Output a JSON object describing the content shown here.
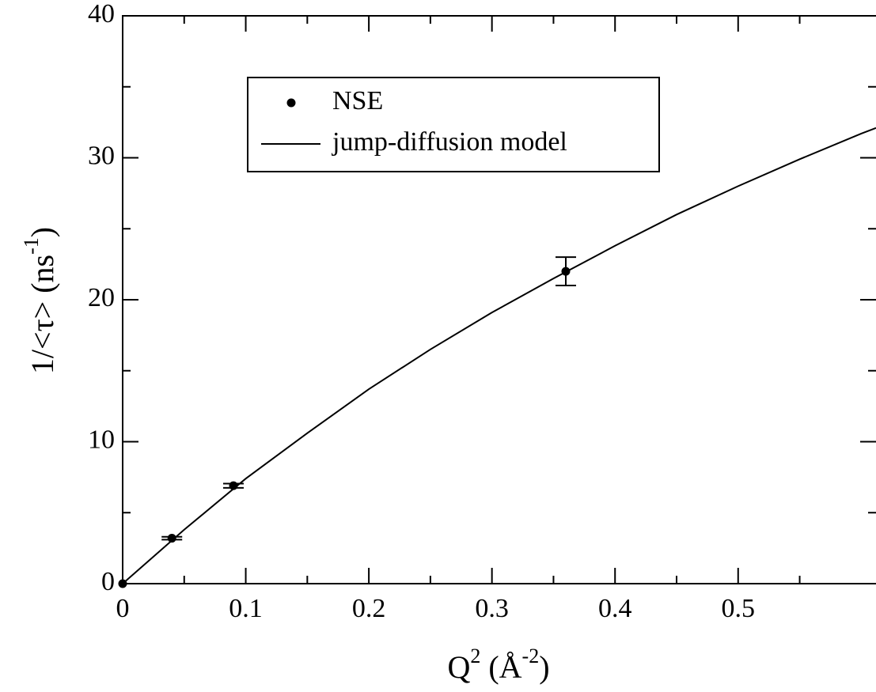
{
  "chart_data": {
    "type": "scatter",
    "x_label": {
      "text": "Q",
      "sup": "2",
      "mid": " (Å",
      "sup2": "-2",
      "tail": ")"
    },
    "y_label": {
      "text": "1/<τ> (ns",
      "sup": "-1",
      "tail": ")"
    },
    "xlim": [
      0,
      0.612
    ],
    "ylim": [
      0,
      40
    ],
    "xticks": [
      0,
      0.1,
      0.2,
      0.3,
      0.4,
      0.5
    ],
    "yticks": [
      0,
      10,
      20,
      30,
      40
    ],
    "xticks_minor": [
      0.05,
      0.15,
      0.25,
      0.35,
      0.45,
      0.55
    ],
    "yticks_minor": [
      5,
      15,
      25,
      35
    ],
    "legend": "upper left",
    "series": [
      {
        "name": "NSE",
        "type": "scatter",
        "color": "#000000",
        "x": [
          0,
          0.04,
          0.09,
          0.36
        ],
        "values": [
          0,
          3.2,
          6.9,
          22
        ],
        "errors": [
          0,
          0.1,
          0.15,
          1.0
        ]
      },
      {
        "name": "jump-diffusion model",
        "type": "line",
        "color": "#000000",
        "x": [
          0,
          0.05,
          0.1,
          0.15,
          0.2,
          0.25,
          0.3,
          0.35,
          0.4,
          0.45,
          0.5,
          0.55,
          0.6,
          0.612
        ],
        "values": [
          0,
          3.8,
          7.4,
          10.6,
          13.7,
          16.5,
          19.1,
          21.5,
          23.8,
          26.0,
          28.0,
          29.9,
          31.7,
          32.1
        ]
      }
    ]
  }
}
